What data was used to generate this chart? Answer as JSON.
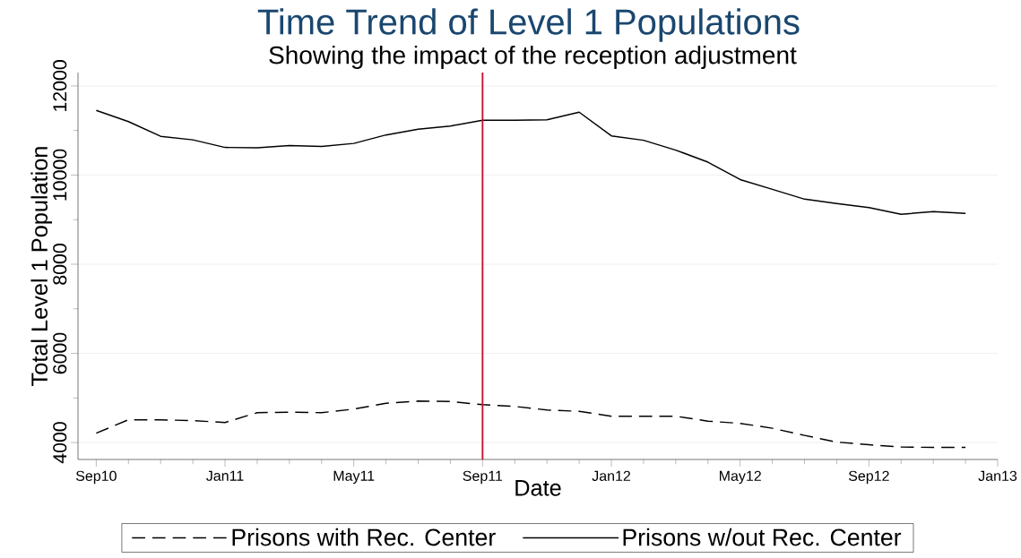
{
  "chart_data": {
    "type": "line",
    "title": "Time Trend of Level 1 Populations",
    "subtitle": "Showing the impact of the reception adjustment",
    "xlabel": "Date",
    "ylabel": "Total Level 1 Population",
    "x": [
      "2010-09",
      "2010-10",
      "2010-11",
      "2010-12",
      "2011-01",
      "2011-02",
      "2011-03",
      "2011-04",
      "2011-05",
      "2011-06",
      "2011-07",
      "2011-08",
      "2011-09",
      "2011-10",
      "2011-11",
      "2011-12",
      "2012-01",
      "2012-02",
      "2012-03",
      "2012-04",
      "2012-05",
      "2012-06",
      "2012-07",
      "2012-08",
      "2012-09",
      "2012-10",
      "2012-11",
      "2012-12"
    ],
    "series": [
      {
        "name": "Prisons with Rec. Center",
        "color": "#000000",
        "line_style": "dashed",
        "values": [
          4210,
          4510,
          4510,
          4490,
          4450,
          4670,
          4680,
          4670,
          4750,
          4880,
          4930,
          4920,
          4850,
          4810,
          4730,
          4700,
          4590,
          4590,
          4590,
          4480,
          4430,
          4320,
          4160,
          4010,
          3950,
          3900,
          3890,
          3890
        ]
      },
      {
        "name": "Prisons w/out Rec. Center",
        "color": "#000000",
        "line_style": "solid",
        "values": [
          11450,
          11200,
          10870,
          10790,
          10620,
          10610,
          10660,
          10640,
          10710,
          10900,
          11030,
          11100,
          11230,
          11230,
          11240,
          11410,
          10880,
          10780,
          10560,
          10290,
          9900,
          9680,
          9460,
          9360,
          9270,
          9120,
          9180,
          9140
        ]
      }
    ],
    "xlim": [
      "2010-08-14",
      "2013-01"
    ],
    "xticks": [
      {
        "value": "2010-09",
        "label": "Sep10"
      },
      {
        "value": "2010-10",
        "label": null
      },
      {
        "value": "2010-11",
        "label": null
      },
      {
        "value": "2010-12",
        "label": null
      },
      {
        "value": "2011-01",
        "label": "Jan11"
      },
      {
        "value": "2011-02",
        "label": null
      },
      {
        "value": "2011-03",
        "label": null
      },
      {
        "value": "2011-04",
        "label": null
      },
      {
        "value": "2011-05",
        "label": "May11"
      },
      {
        "value": "2011-06",
        "label": null
      },
      {
        "value": "2011-07",
        "label": null
      },
      {
        "value": "2011-08",
        "label": null
      },
      {
        "value": "2011-09",
        "label": "Sep11"
      },
      {
        "value": "2011-10",
        "label": null
      },
      {
        "value": "2011-11",
        "label": null
      },
      {
        "value": "2011-12",
        "label": null
      },
      {
        "value": "2012-01",
        "label": "Jan12"
      },
      {
        "value": "2012-02",
        "label": null
      },
      {
        "value": "2012-03",
        "label": null
      },
      {
        "value": "2012-04",
        "label": null
      },
      {
        "value": "2012-05",
        "label": "May12"
      },
      {
        "value": "2012-06",
        "label": null
      },
      {
        "value": "2012-07",
        "label": null
      },
      {
        "value": "2012-08",
        "label": null
      },
      {
        "value": "2012-09",
        "label": "Sep12"
      },
      {
        "value": "2012-10",
        "label": null
      },
      {
        "value": "2012-11",
        "label": null
      },
      {
        "value": "2012-12",
        "label": null
      },
      {
        "value": "2013-01",
        "label": "Jan13"
      }
    ],
    "ylim": [
      3620,
      12300
    ],
    "yticks": [
      4000,
      {
        "value": 5000,
        "label": null
      },
      6000,
      {
        "value": 7000,
        "label": null
      },
      8000,
      {
        "value": 9000,
        "label": null
      },
      10000,
      {
        "value": 11000,
        "label": null
      },
      12000
    ],
    "ref_lines": [
      {
        "axis": "x",
        "value": "2011-09",
        "color": "#c8102e"
      }
    ],
    "grid": "y",
    "legend": "bottom",
    "marker": "none"
  }
}
